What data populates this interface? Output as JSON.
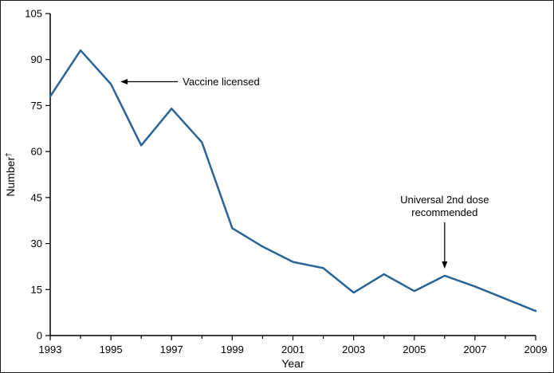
{
  "chart_data": {
    "type": "line",
    "title": "",
    "xlabel": "Year",
    "ylabel": "Number",
    "ylabel_superscript": "†",
    "x": [
      1993,
      1994,
      1995,
      1996,
      1997,
      1998,
      1999,
      2000,
      2001,
      2002,
      2003,
      2004,
      2005,
      2006,
      2007,
      2008,
      2009
    ],
    "values": [
      78,
      93,
      82,
      62,
      74,
      63,
      35,
      29,
      24,
      22,
      14,
      20,
      14.5,
      19.5,
      16,
      12,
      8
    ],
    "ylim": [
      0,
      105
    ],
    "y_tick_step": 15,
    "x_label_step": 2,
    "grid": false,
    "legend": "none",
    "line_color": "#2a6496",
    "axis_color": "#000000",
    "annotations": [
      {
        "id": "vaccine-licensed",
        "lines": [
          "Vaccine licensed"
        ],
        "year": 1995,
        "value": 82,
        "arrow": "left"
      },
      {
        "id": "universal-2nd-dose",
        "lines": [
          "Universal 2nd dose",
          "recommended"
        ],
        "year": 2006,
        "value": 19.5,
        "arrow": "down"
      }
    ]
  }
}
